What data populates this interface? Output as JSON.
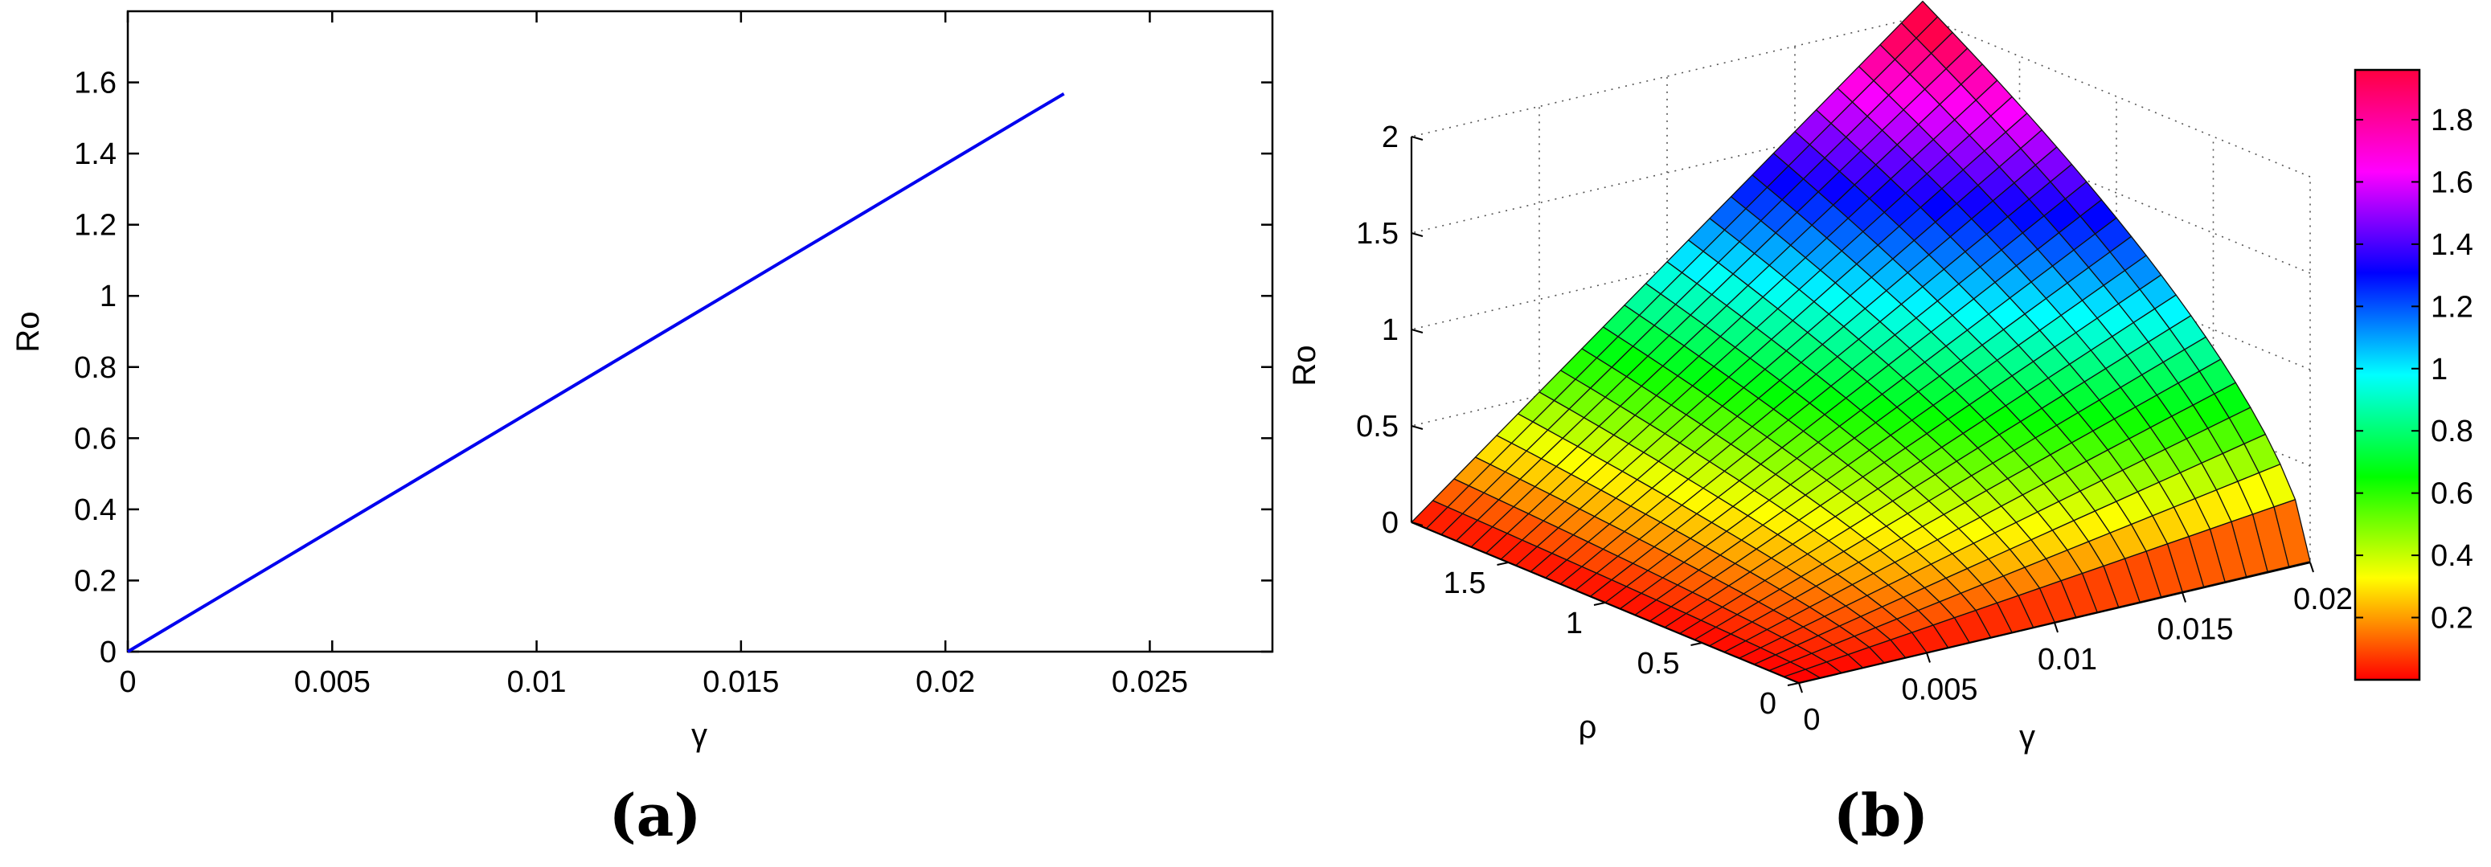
{
  "chart_data": [
    {
      "type": "line",
      "panel_label": "(a)",
      "xlabel": "γ",
      "ylabel": "Ro",
      "xlim": [
        0,
        0.028
      ],
      "ylim": [
        0,
        1.8
      ],
      "xticks": [
        0,
        0.005,
        0.01,
        0.015,
        0.02,
        0.025
      ],
      "xtick_labels": [
        "0",
        "0.005",
        "0.01",
        "0.015",
        "0.02",
        "0.025"
      ],
      "yticks": [
        0,
        0.2,
        0.4,
        0.6,
        0.8,
        1,
        1.2,
        1.4,
        1.6
      ],
      "ytick_labels": [
        "0",
        "0.2",
        "0.4",
        "0.6",
        "0.8",
        "1",
        "1.2",
        "1.4",
        "1.6"
      ],
      "grid": false,
      "series": [
        {
          "color": "#0000ee",
          "x": [
            0,
            0.002,
            0.004,
            0.006,
            0.008,
            0.01,
            0.012,
            0.014,
            0.016,
            0.018,
            0.02,
            0.022,
            0.0229
          ],
          "y": [
            0,
            0.137,
            0.274,
            0.411,
            0.548,
            0.685,
            0.822,
            0.959,
            1.096,
            1.233,
            1.37,
            1.507,
            1.568
          ]
        }
      ]
    },
    {
      "type": "surface",
      "panel_label": "(b)",
      "xlabel": "ρ",
      "ylabel": "γ",
      "zlabel": "Ro",
      "x_range": [
        0,
        2
      ],
      "y_range": [
        0,
        0.02
      ],
      "z_range": [
        0,
        2
      ],
      "xticks": [
        0,
        0.5,
        1,
        1.5
      ],
      "xtick_labels": [
        "0",
        "0.5",
        "1",
        "1.5"
      ],
      "yticks": [
        0,
        0.005,
        0.01,
        0.015,
        0.02
      ],
      "ytick_labels": [
        "0",
        "0.005",
        "0.01",
        "0.015",
        "0.02"
      ],
      "zticks": [
        0,
        0.5,
        1,
        1.5,
        2
      ],
      "ztick_labels": [
        "0",
        "0.5",
        "1",
        "1.5",
        "2"
      ],
      "grid": true,
      "colormap": "hsv",
      "colorbar": {
        "range": [
          0,
          1.96
        ],
        "ticks": [
          0.2,
          0.4,
          0.6,
          0.8,
          1,
          1.2,
          1.4,
          1.6,
          1.8
        ],
        "tick_labels": [
          "0.2",
          "0.4",
          "0.6",
          "0.8",
          "1",
          "1.2",
          "1.4",
          "1.6",
          "1.8"
        ]
      }
    }
  ]
}
